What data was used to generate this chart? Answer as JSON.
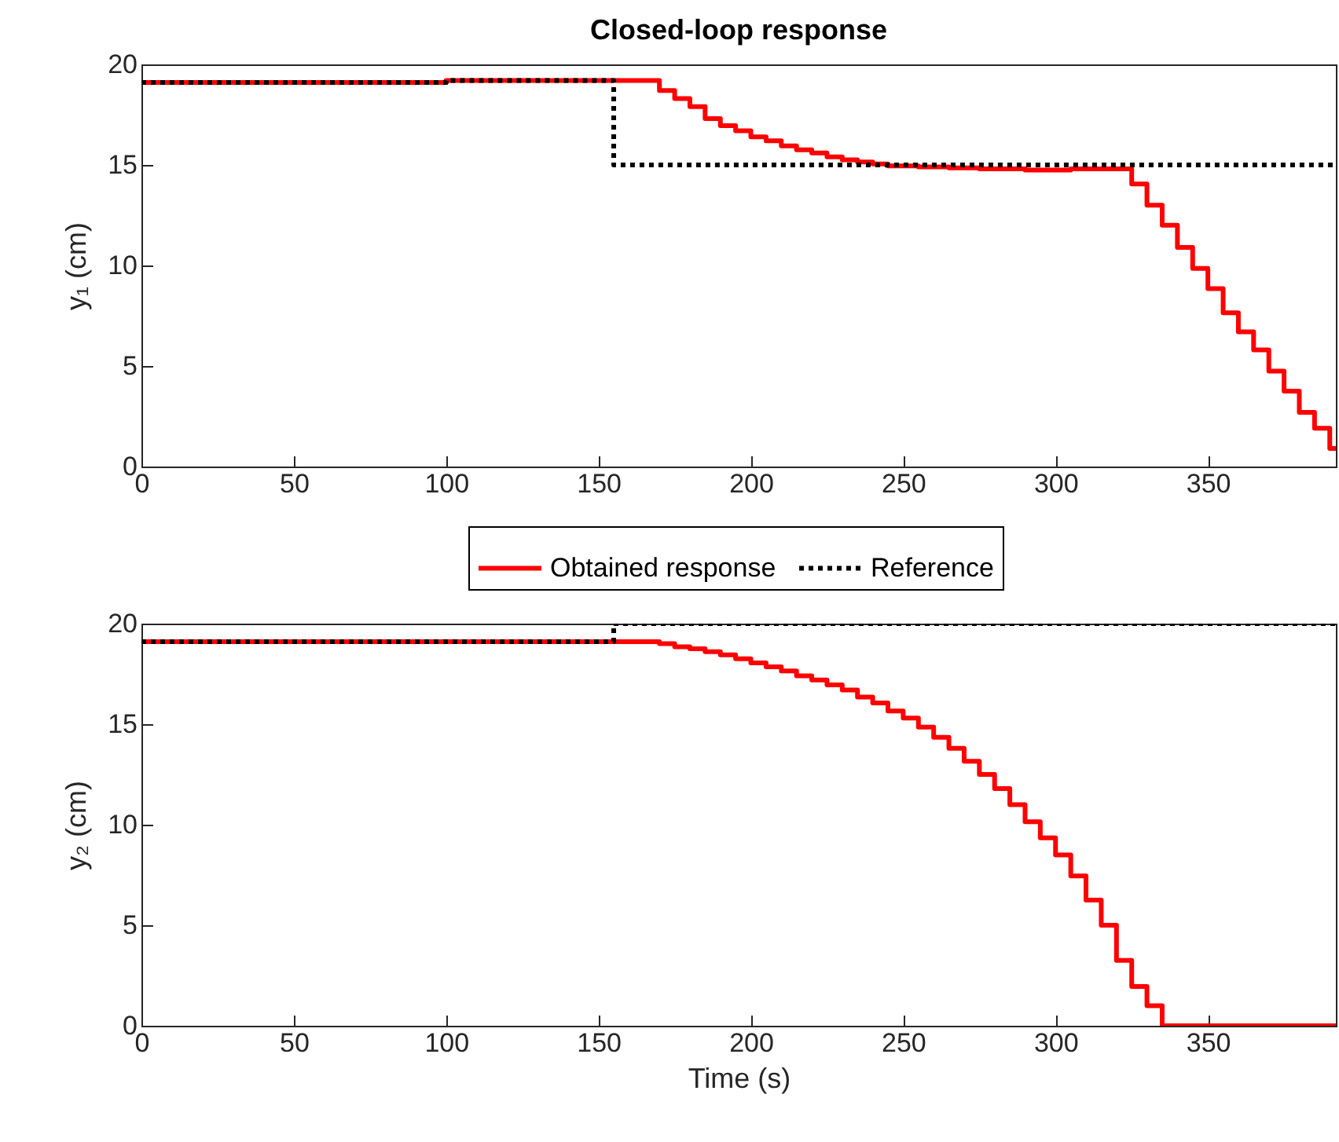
{
  "chart_data": [
    {
      "type": "step",
      "title": "Closed-loop response",
      "ylabel": "y₁ (cm)",
      "xlim": [
        0,
        392
      ],
      "xticks": [
        0,
        50,
        100,
        150,
        200,
        250,
        300,
        350
      ],
      "ylim": [
        0,
        20
      ],
      "yticks": [
        0,
        5,
        10,
        15,
        20
      ],
      "legend": "bottom",
      "marker": "none",
      "series": [
        {
          "name": "Obtained response",
          "color": "#ff0000",
          "line_style": "solid",
          "x": [
            0,
            50,
            100,
            150,
            170,
            175,
            180,
            185,
            190,
            195,
            200,
            205,
            210,
            215,
            220,
            225,
            230,
            235,
            240,
            245,
            250,
            255,
            260,
            265,
            270,
            275,
            280,
            285,
            290,
            295,
            300,
            305,
            310,
            315,
            320,
            325,
            330,
            335,
            340,
            345,
            350,
            355,
            360,
            365,
            370,
            375,
            380,
            385,
            390,
            392
          ],
          "values": [
            19.1,
            19.1,
            19.2,
            19.2,
            18.7,
            18.3,
            17.9,
            17.3,
            16.95,
            16.7,
            16.4,
            16.2,
            15.95,
            15.75,
            15.6,
            15.4,
            15.25,
            15.15,
            15.05,
            14.95,
            14.95,
            14.9,
            14.9,
            14.85,
            14.85,
            14.8,
            14.8,
            14.8,
            14.75,
            14.75,
            14.75,
            14.8,
            14.8,
            14.8,
            14.8,
            14.05,
            13,
            12,
            10.9,
            9.85,
            8.85,
            7.65,
            6.7,
            5.8,
            4.75,
            3.75,
            2.7,
            1.9,
            0.9,
            0.9
          ]
        },
        {
          "name": "Reference",
          "color": "#000000",
          "line_style": "dotted",
          "x": [
            0,
            50,
            100,
            155,
            392
          ],
          "values": [
            19.1,
            19.1,
            19.2,
            15,
            15
          ]
        }
      ]
    },
    {
      "type": "step",
      "xlabel": "Time (s)",
      "ylabel": "y₂ (cm)",
      "xlim": [
        0,
        392
      ],
      "xticks": [
        0,
        50,
        100,
        150,
        200,
        250,
        300,
        350
      ],
      "ylim": [
        0,
        20
      ],
      "yticks": [
        0,
        5,
        10,
        15,
        20
      ],
      "marker": "none",
      "series": [
        {
          "color": "#ff0000",
          "line_style": "solid",
          "x": [
            0,
            50,
            100,
            150,
            170,
            175,
            180,
            185,
            190,
            195,
            200,
            205,
            210,
            215,
            220,
            225,
            230,
            235,
            240,
            245,
            250,
            255,
            260,
            265,
            270,
            275,
            280,
            285,
            290,
            295,
            300,
            305,
            310,
            315,
            320,
            325,
            330,
            335,
            392
          ],
          "values": [
            19.1,
            19.1,
            19.1,
            19.1,
            19,
            18.85,
            18.75,
            18.6,
            18.45,
            18.25,
            18.05,
            17.85,
            17.65,
            17.4,
            17.2,
            16.95,
            16.7,
            16.35,
            16.05,
            15.65,
            15.3,
            14.85,
            14.35,
            13.8,
            13.15,
            12.5,
            11.8,
            11,
            10.15,
            9.35,
            8.5,
            7.45,
            6.25,
            5,
            3.25,
            1.95,
            1,
            0,
            0
          ]
        },
        {
          "color": "#000000",
          "line_style": "dotted",
          "x": [
            0,
            50,
            100,
            155,
            392
          ],
          "values": [
            19.1,
            19.1,
            19.1,
            20,
            20
          ]
        }
      ]
    }
  ]
}
